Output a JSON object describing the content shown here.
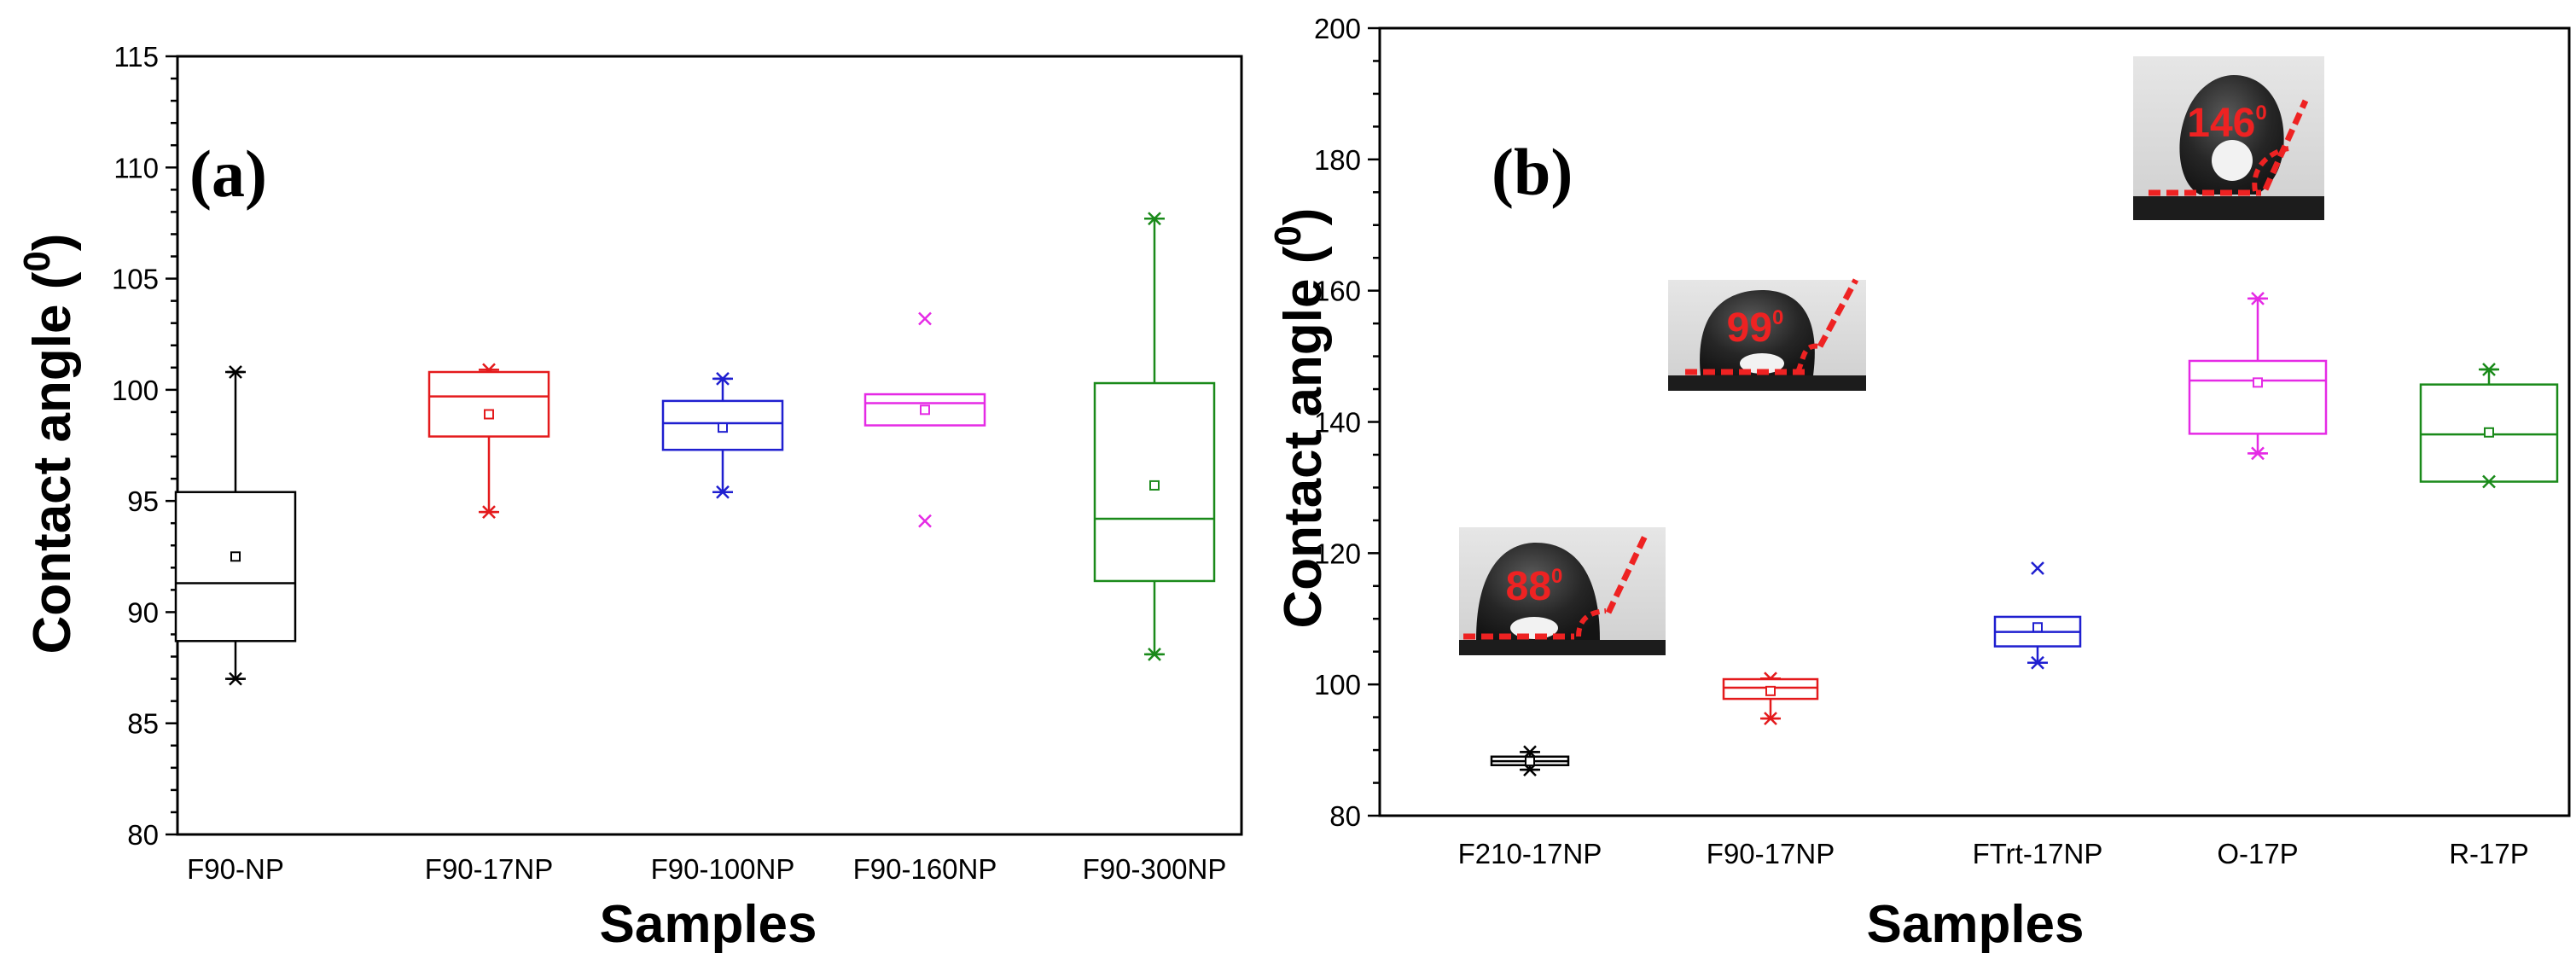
{
  "chart_data": [
    {
      "type": "box",
      "panel_label": "(a)",
      "xlabel": "Samples",
      "ylabel": "Contact angle (",
      "ylabel_sup": "0",
      "ylabel_close": ")",
      "ylim": [
        80,
        115
      ],
      "yticks": [
        80,
        85,
        90,
        95,
        100,
        105,
        110,
        115
      ],
      "categories": [
        "F90-NP",
        "F90-17NP",
        "F90-100NP",
        "F90-160NP",
        "F90-300NP"
      ],
      "colors": [
        "#000000",
        "#e41a1c",
        "#1f1fd0",
        "#e52ae5",
        "#1a8a1a"
      ],
      "boxes": [
        {
          "q1": 88.7,
          "median": 91.3,
          "q3": 95.4,
          "mean": 92.5,
          "whisker_low": 87.0,
          "whisker_high": 100.8,
          "outliers": []
        },
        {
          "q1": 97.9,
          "median": 99.7,
          "q3": 100.8,
          "mean": 98.9,
          "whisker_low": 94.5,
          "whisker_high": 100.9,
          "outliers": []
        },
        {
          "q1": 97.3,
          "median": 98.5,
          "q3": 99.5,
          "mean": 98.3,
          "whisker_low": 95.4,
          "whisker_high": 100.5,
          "outliers": []
        },
        {
          "q1": 98.4,
          "median": 99.4,
          "q3": 99.8,
          "mean": 99.1,
          "whisker_low": null,
          "whisker_high": null,
          "outliers": [
            103.2,
            94.1
          ]
        },
        {
          "q1": 91.4,
          "median": 94.2,
          "q3": 100.3,
          "mean": 95.7,
          "whisker_low": 88.1,
          "whisker_high": 107.7,
          "outliers": []
        }
      ]
    },
    {
      "type": "box",
      "panel_label": "(b)",
      "xlabel": "Samples",
      "ylabel": "Contact angle (",
      "ylabel_sup": "0",
      "ylabel_close": ")",
      "ylim": [
        80,
        200
      ],
      "yticks": [
        80,
        100,
        120,
        140,
        160,
        180,
        200
      ],
      "categories": [
        "F210-17NP",
        "F90-17NP",
        "FTrt-17NP",
        "O-17P",
        "R-17P"
      ],
      "colors": [
        "#000000",
        "#e41a1c",
        "#1f1fd0",
        "#e52ae5",
        "#1a8a1a"
      ],
      "boxes": [
        {
          "q1": 87.7,
          "median": 88.3,
          "q3": 89.0,
          "mean": 88.3,
          "whisker_low": 87.0,
          "whisker_high": 89.7,
          "outliers": []
        },
        {
          "q1": 97.8,
          "median": 99.5,
          "q3": 100.8,
          "mean": 99.0,
          "whisker_low": 94.8,
          "whisker_high": 100.9,
          "outliers": []
        },
        {
          "q1": 105.8,
          "median": 108.0,
          "q3": 110.3,
          "mean": 108.7,
          "whisker_low": 103.3,
          "whisker_high": null,
          "outliers": [
            117.7
          ]
        },
        {
          "q1": 138.2,
          "median": 146.3,
          "q3": 149.3,
          "mean": 146.0,
          "whisker_low": 135.2,
          "whisker_high": 158.8,
          "outliers": []
        },
        {
          "q1": 130.9,
          "median": 138.1,
          "q3": 145.7,
          "mean": 138.4,
          "whisker_low": null,
          "whisker_high": 148.0,
          "outliers": [
            130.9
          ]
        }
      ],
      "insets": [
        {
          "label": "88",
          "superscript": "0",
          "sample": "F210-17NP"
        },
        {
          "label": "99",
          "superscript": "0",
          "sample": "F90-17NP"
        },
        {
          "label": "146",
          "superscript": "0",
          "sample": "O-17P"
        }
      ]
    }
  ]
}
